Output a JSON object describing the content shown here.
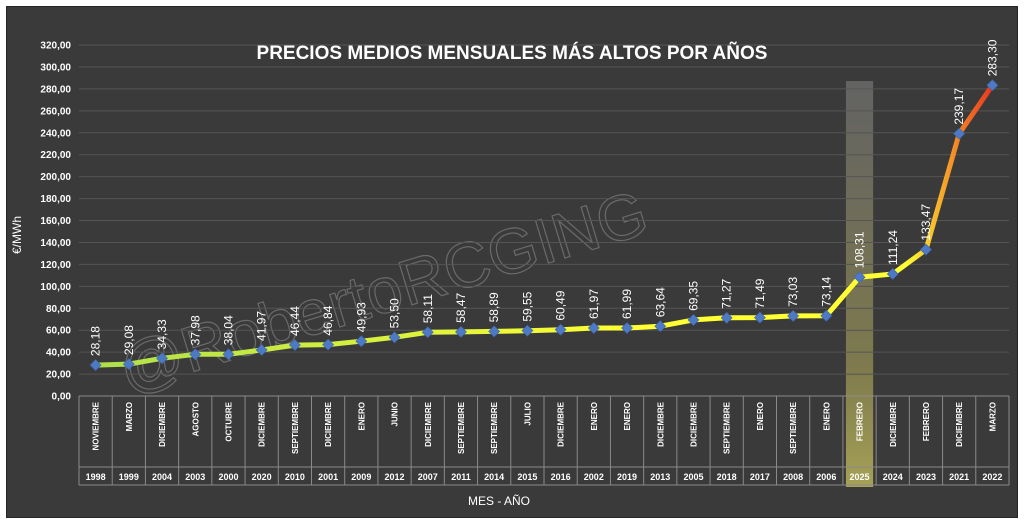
{
  "chart_data": {
    "type": "line",
    "title": "PRECIOS MEDIOS MENSUALES MÁS ALTOS POR AÑOS",
    "ylabel": "€/MWh",
    "xlabel": "MES - AÑO",
    "ylim": [
      0,
      320
    ],
    "ytick_labels": [
      "0,00",
      "20,00",
      "40,00",
      "60,00",
      "80,00",
      "100,00",
      "120,00",
      "140,00",
      "160,00",
      "180,00",
      "200,00",
      "220,00",
      "240,00",
      "260,00",
      "280,00",
      "300,00",
      "320,00"
    ],
    "grid": true,
    "highlight_category_index": 23,
    "watermark": "@RobertoRCGING",
    "line_colors": {
      "start": "#aee04a",
      "mid": "#ffff33",
      "end": "#e8301e"
    },
    "marker_color": "#4e79c4",
    "categories": [
      {
        "month": "NOVIEMBRE",
        "year": "1998"
      },
      {
        "month": "MARZO",
        "year": "1999"
      },
      {
        "month": "DICIEMBRE",
        "year": "2004"
      },
      {
        "month": "AGOSTO",
        "year": "2003"
      },
      {
        "month": "OCTUBRE",
        "year": "2000"
      },
      {
        "month": "DICIEMBRE",
        "year": "2020"
      },
      {
        "month": "SEPTIEMBRE",
        "year": "2010"
      },
      {
        "month": "DICIEMBRE",
        "year": "2001"
      },
      {
        "month": "ENERO",
        "year": "2009"
      },
      {
        "month": "JUNIO",
        "year": "2012"
      },
      {
        "month": "DICIEMBRE",
        "year": "2007"
      },
      {
        "month": "SEPTIEMBRE",
        "year": "2011"
      },
      {
        "month": "SEPTIEMBRE",
        "year": "2014"
      },
      {
        "month": "JULIO",
        "year": "2015"
      },
      {
        "month": "DICIEMBRE",
        "year": "2016"
      },
      {
        "month": "ENERO",
        "year": "2002"
      },
      {
        "month": "ENERO",
        "year": "2019"
      },
      {
        "month": "DICIEMBRE",
        "year": "2013"
      },
      {
        "month": "DICIEMBRE",
        "year": "2005"
      },
      {
        "month": "SEPTIEMBRE",
        "year": "2018"
      },
      {
        "month": "ENERO",
        "year": "2017"
      },
      {
        "month": "SEPTIEMBRE",
        "year": "2008"
      },
      {
        "month": "ENERO",
        "year": "2006"
      },
      {
        "month": "FEBRERO",
        "year": "2025"
      },
      {
        "month": "DICIEMBRE",
        "year": "2024"
      },
      {
        "month": "FEBRERO",
        "year": "2023"
      },
      {
        "month": "DICIEMBRE",
        "year": "2021"
      },
      {
        "month": "MARZO",
        "year": "2022"
      }
    ],
    "values": [
      28.18,
      29.08,
      34.33,
      37.98,
      38.04,
      41.97,
      46.44,
      46.84,
      49.93,
      53.5,
      58.11,
      58.47,
      58.89,
      59.55,
      60.49,
      61.97,
      61.99,
      63.64,
      69.35,
      71.27,
      71.49,
      73.03,
      73.14,
      108.31,
      111.24,
      133.47,
      239.17,
      283.3
    ],
    "value_labels": [
      "28,18",
      "29,08",
      "34,33",
      "37,98",
      "38,04",
      "41,97",
      "46,44",
      "46,84",
      "49,93",
      "53,50",
      "58,11",
      "58,47",
      "58,89",
      "59,55",
      "60,49",
      "61,97",
      "61,99",
      "63,64",
      "69,35",
      "71,27",
      "71,49",
      "73,03",
      "73,14",
      "108,31",
      "111,24",
      "133,47",
      "239,17",
      "283,30"
    ]
  }
}
